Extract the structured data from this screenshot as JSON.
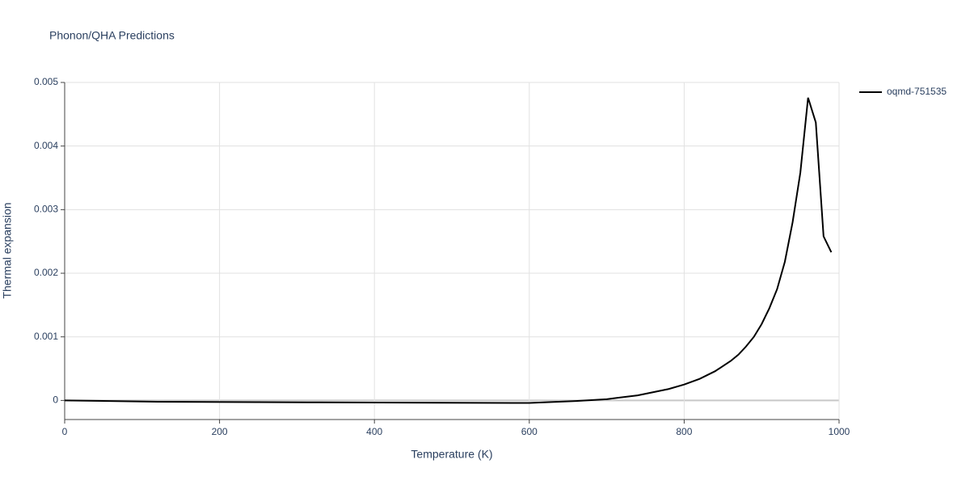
{
  "chart_data": {
    "type": "line",
    "title": "Phonon/QHA Predictions",
    "x_label": "Temperature (K)",
    "y_label": "Thermal expansion",
    "x": [
      0,
      120,
      330,
      600,
      660,
      700,
      740,
      780,
      800,
      820,
      840,
      860,
      870,
      880,
      890,
      900,
      910,
      920,
      930,
      940,
      950,
      960,
      970,
      980,
      990
    ],
    "series": [
      {
        "name": "oqmd-751535",
        "color": "#000000",
        "values": [
          0,
          -2e-05,
          -3e-05,
          -4e-05,
          -1e-05,
          2e-05,
          8e-05,
          0.00018,
          0.00025,
          0.00034,
          0.00046,
          0.00062,
          0.00072,
          0.00085,
          0.001,
          0.0012,
          0.00145,
          0.00175,
          0.00218,
          0.0028,
          0.00358,
          0.00476,
          0.00437,
          0.00258,
          0.00233
        ]
      }
    ],
    "xlim": [
      0,
      1000
    ],
    "xticks": [
      0,
      200,
      400,
      600,
      800,
      1000
    ],
    "ylim": [
      -0.0003,
      0.005
    ],
    "yticks": [
      0,
      0.001,
      0.002,
      0.003,
      0.004,
      0.005
    ],
    "grid": true,
    "legend": "right"
  }
}
